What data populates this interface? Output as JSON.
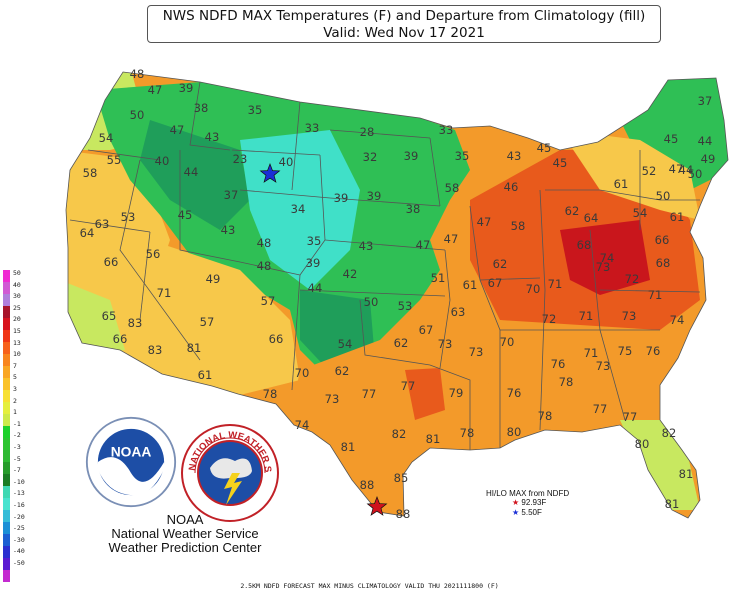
{
  "title": {
    "line1": "NWS NDFD MAX Temperatures (F) and Departure from Climatology (fill)",
    "line2": "Valid: Wed Nov 17 2021"
  },
  "colors": {
    "strong_cold": "#1f9e5a",
    "cold": "#2fbf55",
    "very_cold": "#40e0c8",
    "near_normal": "#c8e860",
    "mild_warm": "#f7c84a",
    "warm": "#f39a2a",
    "hot": "#e85a1c",
    "hottest": "#c9161c",
    "high_star": "#d0121d",
    "low_star": "#1a2fd6"
  },
  "legend": {
    "labels": [
      "50",
      "40",
      "30",
      "25",
      "20",
      "15",
      "13",
      "10",
      "7",
      "5",
      "3",
      "2",
      "1",
      "-1",
      "-2",
      "-3",
      "-5",
      "-7",
      "-10",
      "-13",
      "-16",
      "-20",
      "-25",
      "-30",
      "-40",
      "-50"
    ],
    "colors": [
      "#f02bd2",
      "#d15ad4",
      "#b07fdc",
      "#a8142a",
      "#d8141e",
      "#f03616",
      "#f7611c",
      "#f8851f",
      "#f9a624",
      "#fac22a",
      "#f7e034",
      "#e5ef3e",
      "#cdea4a",
      "#1dd12a",
      "#2ec531",
      "#2fb933",
      "#279c2b",
      "#1a7d23",
      "#3fd8b3",
      "#49e3cf",
      "#35bcd8",
      "#1b8fd6",
      "#1c5fd2",
      "#2b2fd0",
      "#5a1bd2",
      "#c42bd0"
    ]
  },
  "temperatures": [
    "48",
    "47",
    "39",
    "50",
    "47",
    "38",
    "35",
    "33",
    "28",
    "33",
    "54",
    "43",
    "45",
    "55",
    "40",
    "44",
    "23",
    "40",
    "32",
    "39",
    "35",
    "43",
    "45",
    "58",
    "37",
    "39",
    "39",
    "46",
    "58",
    "47",
    "34",
    "38",
    "53",
    "62",
    "45",
    "43",
    "35",
    "43",
    "47",
    "47",
    "58",
    "63",
    "64",
    "66",
    "56",
    "39",
    "62",
    "44",
    "42",
    "51",
    "61",
    "67",
    "70",
    "71",
    "74",
    "48",
    "49",
    "57",
    "50",
    "53",
    "63",
    "68",
    "73",
    "72",
    "71",
    "65",
    "83",
    "71",
    "57",
    "66",
    "67",
    "73",
    "62",
    "72",
    "71",
    "73",
    "70",
    "74",
    "81",
    "54",
    "62",
    "73",
    "76",
    "71",
    "73",
    "75",
    "76",
    "66",
    "83",
    "70",
    "61",
    "78",
    "73",
    "77",
    "77",
    "79",
    "76",
    "78",
    "74",
    "78",
    "81",
    "82",
    "81",
    "78",
    "80",
    "77",
    "77",
    "82",
    "80",
    "88",
    "85",
    "88",
    "81",
    "81",
    "44",
    "37",
    "45",
    "44",
    "47",
    "49",
    "50",
    "52",
    "61",
    "54",
    "50",
    "61",
    "64",
    "66",
    "68",
    "48"
  ],
  "markers": {
    "hilo_label": "HI/LO MAX from NDFD",
    "high_value": "92.93F",
    "low_value": "5.50F"
  },
  "logos": {
    "noaa": "NOAA",
    "nws": "NATIONAL WEATHER SERVICE"
  },
  "credits": {
    "agency": "NOAA",
    "service": "National Weather Service",
    "center": "Weather Prediction Center"
  },
  "footer": "2.5KM NDFD FORECAST MAX MINUS CLIMATOLOGY VALID THU 2021111800 (F)"
}
